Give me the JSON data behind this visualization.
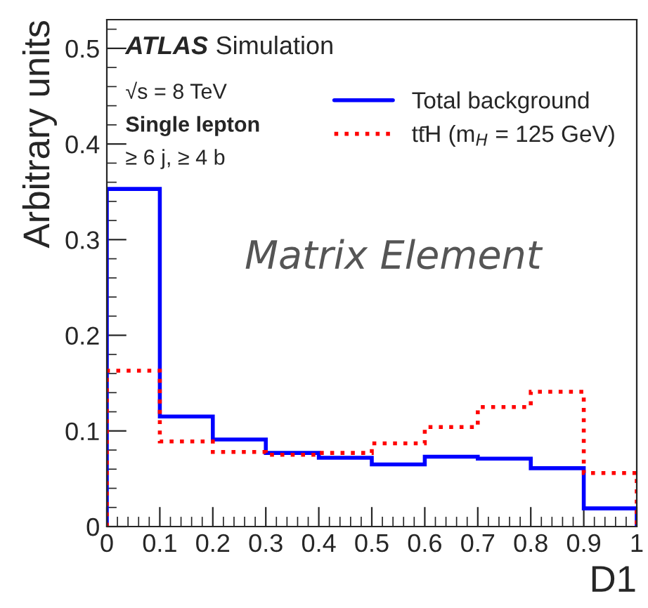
{
  "chart_data": {
    "type": "histogram",
    "xlabel": "D1",
    "ylabel": "Arbitrary units",
    "bins": [
      0,
      0.1,
      0.2,
      0.3,
      0.4,
      0.5,
      0.6,
      0.7,
      0.8,
      0.9,
      1
    ],
    "series": [
      {
        "name": "Total background",
        "color": "#0000ff",
        "line_style": "solid",
        "values": [
          0.353,
          0.115,
          0.091,
          0.077,
          0.072,
          0.065,
          0.073,
          0.071,
          0.061,
          0.019
        ]
      },
      {
        "name": "tt̄H (m$_{H}$ = 125 GeV)",
        "color": "#ff0000",
        "line_style": "dotted",
        "values": [
          0.163,
          0.089,
          0.078,
          0.075,
          0.077,
          0.087,
          0.104,
          0.125,
          0.141,
          0.056
        ]
      }
    ],
    "xlim": [
      0,
      1
    ],
    "xticks": [
      0,
      0.1,
      0.2,
      0.3,
      0.4,
      0.5,
      0.6,
      0.7,
      0.8,
      0.9,
      1
    ],
    "ylim": [
      0,
      0.53
    ],
    "yticks": [
      0,
      0.1,
      0.2,
      0.3,
      0.4,
      0.5
    ],
    "grid": false,
    "legend": "top right",
    "annotations": [
      "ATLAS",
      "Simulation",
      "√s = 8 TeV",
      "Single lepton",
      "≥ 6 j, ≥ 4 b",
      "Matrix Element"
    ]
  }
}
